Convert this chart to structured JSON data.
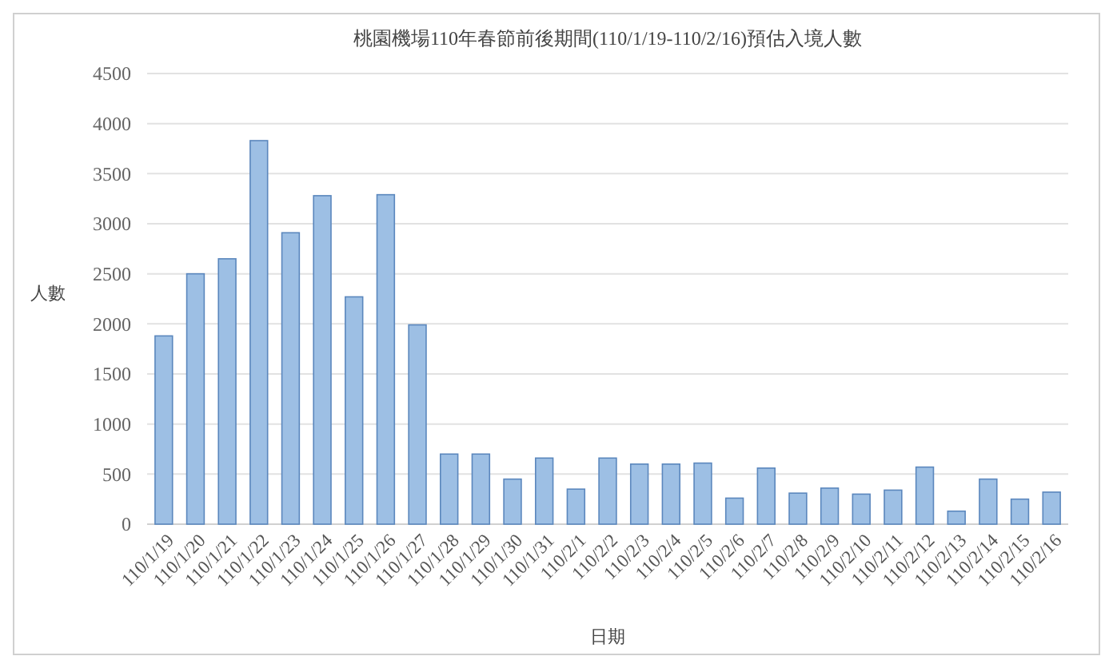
{
  "chart_data": {
    "type": "bar",
    "title": "桃園機場110年春節前後期間(110/1/19-110/2/16)預估入境人數",
    "xlabel": "日期",
    "ylabel": "人數",
    "categories": [
      "110/1/19",
      "110/1/20",
      "110/1/21",
      "110/1/22",
      "110/1/23",
      "110/1/24",
      "110/1/25",
      "110/1/26",
      "110/1/27",
      "110/1/28",
      "110/1/29",
      "110/1/30",
      "110/1/31",
      "110/2/1",
      "110/2/2",
      "110/2/3",
      "110/2/4",
      "110/2/5",
      "110/2/6",
      "110/2/7",
      "110/2/8",
      "110/2/9",
      "110/2/10",
      "110/2/11",
      "110/2/12",
      "110/2/13",
      "110/2/14",
      "110/2/15",
      "110/2/16"
    ],
    "values": [
      1880,
      2500,
      2650,
      3830,
      2910,
      3280,
      2270,
      3290,
      1990,
      700,
      700,
      450,
      660,
      350,
      660,
      600,
      600,
      610,
      260,
      560,
      310,
      360,
      300,
      340,
      570,
      130,
      450,
      250,
      320
    ],
    "color": "#9dbfe4",
    "ylim": [
      0,
      4500
    ],
    "yticks": [
      0,
      500,
      1000,
      1500,
      2000,
      2500,
      3000,
      3500,
      4000,
      4500
    ],
    "grid": "y"
  }
}
